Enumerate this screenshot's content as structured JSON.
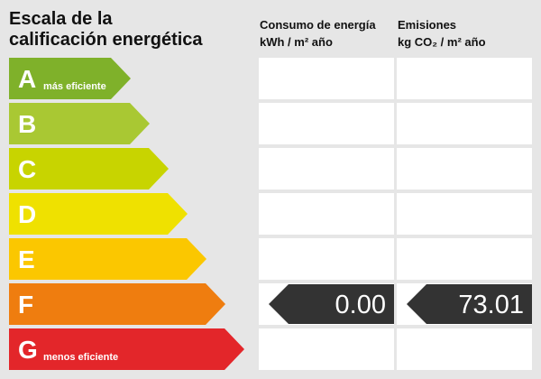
{
  "header": {
    "title_lines": [
      "Escala de la",
      "calificación energética"
    ],
    "consumption": {
      "title": "Consumo de energía",
      "unit": "kWh / m² año"
    },
    "emissions": {
      "title": "Emisiones",
      "unit": "kg CO₂ / m² año"
    }
  },
  "rows": [
    {
      "letter": "A",
      "note": "más eficiente",
      "color": "#7fb12a"
    },
    {
      "letter": "B",
      "color": "#a9c833"
    },
    {
      "letter": "C",
      "color": "#c8d400"
    },
    {
      "letter": "D",
      "color": "#efe100"
    },
    {
      "letter": "E",
      "color": "#fbc700"
    },
    {
      "letter": "F",
      "color": "#ef7d0f",
      "consumption": "0.00",
      "emissions": "73.01"
    },
    {
      "letter": "G",
      "note": "menos eficiente",
      "color": "#e3262a"
    }
  ]
}
